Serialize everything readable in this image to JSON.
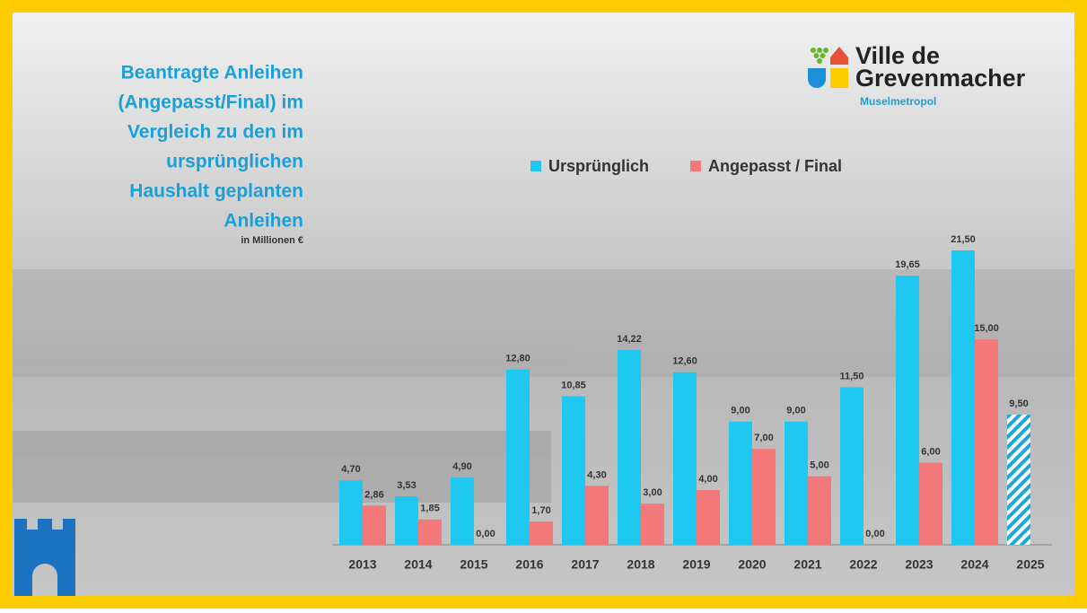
{
  "chart_data": {
    "type": "bar",
    "title": [
      "Beantragte Anleihen",
      "(Angepasst/Final) im",
      "Vergleich zu den im",
      "ursprünglichen",
      "Haushalt geplanten",
      "Anleihen"
    ],
    "subtitle": "in Millionen €",
    "brand": {
      "name": [
        "Ville de",
        "Grevenmacher"
      ],
      "tagline": "Muselmetropol"
    },
    "categories": [
      "2013",
      "2014",
      "2015",
      "2016",
      "2017",
      "2018",
      "2019",
      "2020",
      "2021",
      "2022",
      "2023",
      "2024",
      "2025"
    ],
    "series": [
      {
        "name": "Ursprünglich",
        "color": "#1ec8f0",
        "values": [
          4.7,
          3.53,
          4.9,
          12.8,
          10.85,
          14.22,
          12.6,
          9.0,
          9.0,
          11.5,
          19.65,
          21.5,
          9.5
        ],
        "value_labels": [
          "4,70",
          "3,53",
          "4,90",
          "12,80",
          "10,85",
          "14,22",
          "12,60",
          "9,00",
          "9,00",
          "11,50",
          "19,65",
          "21,50",
          "9,50"
        ],
        "hatched": [
          false,
          false,
          false,
          false,
          false,
          false,
          false,
          false,
          false,
          false,
          false,
          false,
          true
        ]
      },
      {
        "name": "Angepasst / Final",
        "color": "#f2787a",
        "values": [
          2.86,
          1.85,
          0.0,
          1.7,
          4.3,
          3.0,
          4.0,
          7.0,
          5.0,
          0.0,
          6.0,
          15.0,
          null
        ],
        "value_labels": [
          "2,86",
          "1,85",
          "0,00",
          "1,70",
          "4,30",
          "3,00",
          "4,00",
          "7,00",
          "5,00",
          "0,00",
          "6,00",
          "15,00",
          null
        ]
      }
    ]
  }
}
